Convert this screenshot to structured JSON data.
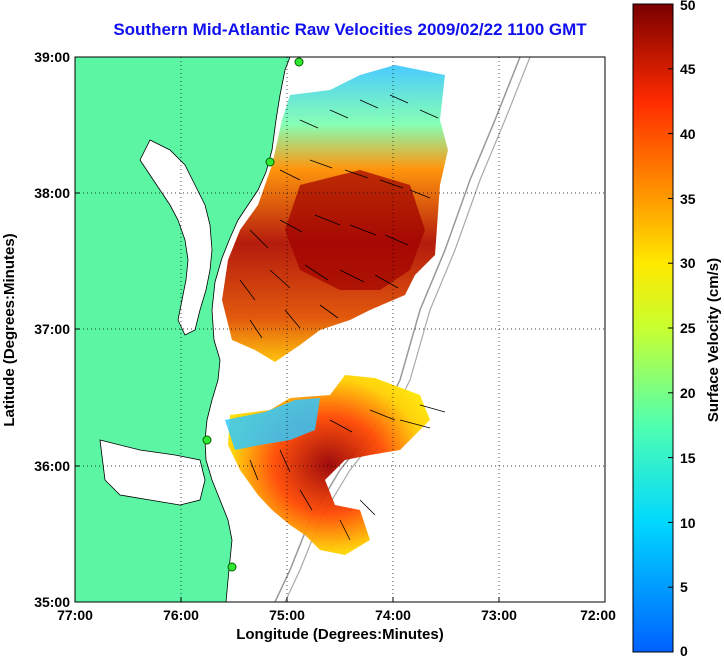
{
  "title": "Southern Mid-Atlantic Raw Velocities 2009/02/22 1100 GMT",
  "map": {
    "xlabel": "Longitude (Degrees:Minutes)",
    "ylabel": "Latitude (Degrees:Minutes)",
    "x_ticks": [
      "77:00",
      "76:00",
      "75:00",
      "74:00",
      "73:00",
      "72:00"
    ],
    "y_ticks": [
      "39:00",
      "38:00",
      "37:00",
      "36:00",
      "35:00"
    ],
    "x_range": [
      -77,
      -72
    ],
    "y_range": [
      35,
      39
    ]
  },
  "colorbar": {
    "label": "Surface Velocity (cm/s)",
    "ticks": [
      "50",
      "45",
      "40",
      "35",
      "30",
      "25",
      "20",
      "15",
      "10",
      "5",
      "0"
    ],
    "range": [
      0,
      50
    ]
  },
  "colors": {
    "land": "#5cf5a4",
    "title": "#1010ee"
  }
}
